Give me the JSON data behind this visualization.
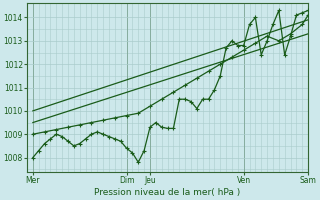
{
  "xlabel": "Pression niveau de la mer( hPa )",
  "bg_color": "#cde8eb",
  "grid_color": "#aacccc",
  "line_color": "#1a5c1a",
  "tick_label_color": "#1a5c1a",
  "label_color": "#1a5c1a",
  "ylim": [
    1007.4,
    1014.6
  ],
  "yticks": [
    1008,
    1009,
    1010,
    1011,
    1012,
    1013,
    1014
  ],
  "xlim": [
    0,
    24
  ],
  "x_day_positions": [
    0.5,
    8.5,
    10.5,
    18.5,
    24.0
  ],
  "x_day_labels": [
    "Mer",
    "Dim",
    "Jeu",
    "Ven",
    "Sam"
  ],
  "vlines_x": [
    0.5,
    8.5,
    10.5,
    18.5,
    24.0
  ],
  "series1_x": [
    0.5,
    1.0,
    1.5,
    2.0,
    2.5,
    3.0,
    3.5,
    4.0,
    4.5,
    5.0,
    5.5,
    6.0,
    6.5,
    7.0,
    7.5,
    8.0,
    8.5,
    9.0,
    9.5,
    10.0,
    10.5,
    11.0,
    11.5,
    12.0,
    12.5,
    13.0,
    13.5,
    14.0,
    14.5,
    15.0,
    15.5,
    16.0,
    16.5,
    17.0,
    17.5,
    18.0,
    18.5,
    19.0,
    19.5,
    20.0,
    20.5,
    21.0,
    21.5,
    22.0,
    22.5,
    23.0,
    23.5,
    24.0
  ],
  "series1_y": [
    1008.0,
    1008.3,
    1008.6,
    1008.8,
    1009.0,
    1008.9,
    1008.7,
    1008.5,
    1008.6,
    1008.8,
    1009.0,
    1009.1,
    1009.0,
    1008.9,
    1008.8,
    1008.7,
    1008.4,
    1008.2,
    1007.8,
    1008.3,
    1009.3,
    1009.5,
    1009.3,
    1009.25,
    1009.25,
    1010.5,
    1010.5,
    1010.4,
    1010.1,
    1010.5,
    1010.5,
    1010.9,
    1011.5,
    1012.7,
    1013.0,
    1012.8,
    1012.8,
    1013.7,
    1014.0,
    1012.4,
    1013.0,
    1013.7,
    1014.3,
    1012.4,
    1013.2,
    1014.1,
    1014.2,
    1014.3
  ],
  "series2_x": [
    0.5,
    1.5,
    2.5,
    3.5,
    4.5,
    5.5,
    6.5,
    7.5,
    8.5,
    9.5,
    10.5,
    11.5,
    12.5,
    13.5,
    14.5,
    15.5,
    16.5,
    17.5,
    18.5,
    19.5,
    20.5,
    21.5,
    22.5,
    23.5,
    24.0
  ],
  "series2_y": [
    1009.0,
    1009.1,
    1009.2,
    1009.3,
    1009.4,
    1009.5,
    1009.6,
    1009.7,
    1009.8,
    1009.9,
    1010.2,
    1010.5,
    1010.8,
    1011.1,
    1011.4,
    1011.7,
    1012.0,
    1012.3,
    1012.6,
    1012.9,
    1013.2,
    1013.0,
    1013.3,
    1013.7,
    1014.1
  ],
  "trend1_x": [
    0.5,
    24.0
  ],
  "trend1_y": [
    1009.5,
    1013.3
  ],
  "trend2_x": [
    0.5,
    24.0
  ],
  "trend2_y": [
    1010.0,
    1013.9
  ],
  "marker_size": 3.0,
  "linewidth": 0.9
}
